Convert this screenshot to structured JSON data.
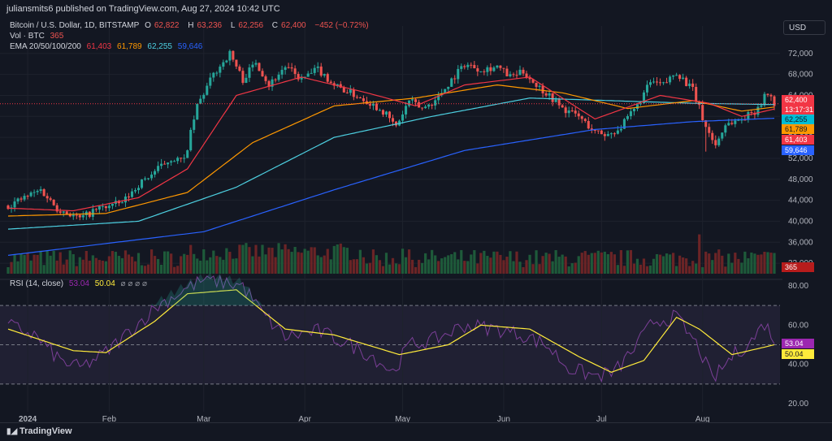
{
  "header": {
    "publish_line": "juliansmits6 published on TradingView.com, Aug 27, 2024 10:42 UTC"
  },
  "legend": {
    "symbol": "Bitcoin / U.S. Dollar, 1D, BITSTAMP",
    "open_label": "O",
    "open": "62,822",
    "high_label": "H",
    "high": "63,236",
    "low_label": "L",
    "low": "62,256",
    "close_label": "C",
    "close": "62,400",
    "change": "−452 (−0.72%)",
    "vol_label": "Vol · BTC",
    "vol_value": "365",
    "ema_label": "EMA 20/50/100/200",
    "ema20": "61,403",
    "ema50": "61,789",
    "ema100": "62,255",
    "ema200": "59,646"
  },
  "currency_button": "USD",
  "rsi_legend": {
    "label": "RSI (14, close)",
    "rsi": "53.04",
    "ma": "50.04",
    "icons": "⌀ ⌀ ⌀ ⌀"
  },
  "price_tags": {
    "last": "62,400",
    "countdown": "13:17:31",
    "ema100": "62,255",
    "ema50": "61,789",
    "ema20": "61,403",
    "ema200": "59,646",
    "volume": "365",
    "rsi": "53.04",
    "rsi_ma": "50.04"
  },
  "colors": {
    "up": "#26a69a",
    "down": "#ef5350",
    "ema20": "#f23645",
    "ema50": "#ff9800",
    "ema100": "#4dd0e1",
    "ema200": "#2962ff",
    "rsi": "#9c27b0",
    "rsi_ma": "#ffeb3b"
  },
  "footer": {
    "brand": "TradingView"
  },
  "chart_data": {
    "type": "candlestick",
    "title": "Bitcoin / U.S. Dollar, 1D, BITSTAMP",
    "price_axis": {
      "ticks": [
        "72,000",
        "68,000",
        "64,000",
        "60,000",
        "56,000",
        "52,000",
        "48,000",
        "44,000",
        "40,000",
        "36,000",
        "32,000"
      ],
      "ylim": [
        30000,
        76000
      ]
    },
    "rsi_axis": {
      "ticks": [
        "80.00",
        "60.00",
        "40.00",
        "20.00"
      ],
      "ylim": [
        20,
        80
      ],
      "bands": [
        30,
        50,
        70
      ]
    },
    "x_ticks": [
      "2024",
      "Feb",
      "Mar",
      "Apr",
      "May",
      "Jun",
      "Jul",
      "Aug"
    ],
    "close_anchors": [
      [
        0,
        43000
      ],
      [
        10,
        46000
      ],
      [
        15,
        42500
      ],
      [
        22,
        40500
      ],
      [
        28,
        42500
      ],
      [
        35,
        43500
      ],
      [
        40,
        47000
      ],
      [
        45,
        49500
      ],
      [
        50,
        52000
      ],
      [
        54,
        51500
      ],
      [
        58,
        62000
      ],
      [
        63,
        68000
      ],
      [
        68,
        72000
      ],
      [
        72,
        67000
      ],
      [
        76,
        70500
      ],
      [
        80,
        66000
      ],
      [
        85,
        69500
      ],
      [
        90,
        67000
      ],
      [
        95,
        69000
      ],
      [
        100,
        66000
      ],
      [
        105,
        64500
      ],
      [
        110,
        63000
      ],
      [
        115,
        61000
      ],
      [
        119,
        58000
      ],
      [
        123,
        63000
      ],
      [
        127,
        61500
      ],
      [
        131,
        63000
      ],
      [
        136,
        67000
      ],
      [
        140,
        70000
      ],
      [
        145,
        69000
      ],
      [
        150,
        69500
      ],
      [
        154,
        67500
      ],
      [
        158,
        68500
      ],
      [
        162,
        66000
      ],
      [
        166,
        64000
      ],
      [
        170,
        61500
      ],
      [
        175,
        60000
      ],
      [
        180,
        57000
      ],
      [
        184,
        56500
      ],
      [
        188,
        58000
      ],
      [
        193,
        62000
      ],
      [
        197,
        66500
      ],
      [
        201,
        66000
      ],
      [
        205,
        68500
      ],
      [
        210,
        65000
      ],
      [
        214,
        58000
      ],
      [
        217,
        54500
      ],
      [
        220,
        58500
      ],
      [
        225,
        59500
      ],
      [
        229,
        61000
      ],
      [
        233,
        64500
      ],
      [
        235,
        62400
      ]
    ],
    "ema20_anchors": [
      [
        0,
        42500
      ],
      [
        20,
        42000
      ],
      [
        40,
        44500
      ],
      [
        55,
        50000
      ],
      [
        70,
        64000
      ],
      [
        90,
        67500
      ],
      [
        110,
        64500
      ],
      [
        125,
        62000
      ],
      [
        140,
        66000
      ],
      [
        160,
        67500
      ],
      [
        180,
        59500
      ],
      [
        200,
        64000
      ],
      [
        215,
        62500
      ],
      [
        225,
        60000
      ],
      [
        235,
        61403
      ]
    ],
    "ema50_anchors": [
      [
        0,
        41000
      ],
      [
        30,
        41500
      ],
      [
        55,
        45500
      ],
      [
        75,
        55000
      ],
      [
        100,
        62000
      ],
      [
        125,
        63500
      ],
      [
        150,
        66000
      ],
      [
        170,
        64500
      ],
      [
        190,
        61500
      ],
      [
        210,
        63000
      ],
      [
        225,
        61000
      ],
      [
        235,
        61789
      ]
    ],
    "ema100_anchors": [
      [
        0,
        38500
      ],
      [
        40,
        40000
      ],
      [
        70,
        46500
      ],
      [
        100,
        56000
      ],
      [
        130,
        60000
      ],
      [
        160,
        63500
      ],
      [
        185,
        63000
      ],
      [
        210,
        62500
      ],
      [
        235,
        62255
      ]
    ],
    "ema200_anchors": [
      [
        0,
        33500
      ],
      [
        60,
        38000
      ],
      [
        100,
        46000
      ],
      [
        140,
        53500
      ],
      [
        180,
        57500
      ],
      [
        210,
        59000
      ],
      [
        235,
        59646
      ]
    ],
    "volume_spikes": [
      [
        121,
        2.2
      ],
      [
        212,
        4.5
      ]
    ],
    "rsi_anchors": [
      [
        0,
        60
      ],
      [
        8,
        55
      ],
      [
        16,
        42
      ],
      [
        22,
        38
      ],
      [
        30,
        46
      ],
      [
        38,
        58
      ],
      [
        46,
        70
      ],
      [
        50,
        74
      ],
      [
        54,
        78
      ],
      [
        60,
        83
      ],
      [
        66,
        82
      ],
      [
        72,
        80
      ],
      [
        78,
        66
      ],
      [
        85,
        54
      ],
      [
        95,
        57
      ],
      [
        105,
        50
      ],
      [
        112,
        44
      ],
      [
        118,
        36
      ],
      [
        123,
        50
      ],
      [
        130,
        52
      ],
      [
        140,
        60
      ],
      [
        150,
        58
      ],
      [
        158,
        55
      ],
      [
        165,
        50
      ],
      [
        172,
        38
      ],
      [
        180,
        34
      ],
      [
        186,
        36
      ],
      [
        192,
        48
      ],
      [
        198,
        62
      ],
      [
        205,
        64
      ],
      [
        212,
        48
      ],
      [
        216,
        32
      ],
      [
        222,
        44
      ],
      [
        228,
        52
      ],
      [
        232,
        61
      ],
      [
        235,
        53.04
      ]
    ],
    "rsi_ma_anchors": [
      [
        0,
        58
      ],
      [
        20,
        47
      ],
      [
        30,
        46
      ],
      [
        45,
        62
      ],
      [
        55,
        76
      ],
      [
        70,
        78
      ],
      [
        85,
        58
      ],
      [
        100,
        55
      ],
      [
        120,
        45
      ],
      [
        135,
        50
      ],
      [
        145,
        60
      ],
      [
        160,
        58
      ],
      [
        175,
        44
      ],
      [
        185,
        36
      ],
      [
        195,
        42
      ],
      [
        205,
        64
      ],
      [
        212,
        58
      ],
      [
        222,
        45
      ],
      [
        230,
        48
      ],
      [
        235,
        50.04
      ]
    ]
  }
}
